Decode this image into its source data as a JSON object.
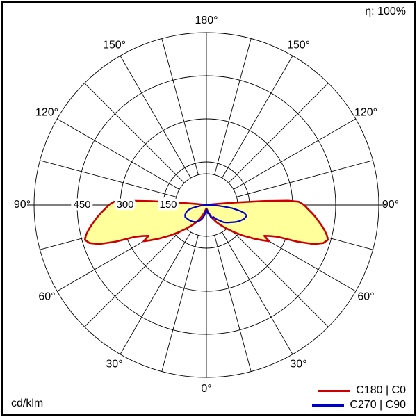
{
  "chart_data": {
    "type": "polar",
    "kind": "luminous-intensity-distribution",
    "efficiency": "η: 100%",
    "unit_label": "cd/klm",
    "angle_labels_deg": [
      0,
      30,
      60,
      90,
      120,
      150,
      180
    ],
    "angle_grid_step_deg": 15,
    "radial_ticks": [
      150,
      300,
      450
    ],
    "r_max": 600,
    "grid": true,
    "legend_position": "bottom-right",
    "series": [
      {
        "name": "C180 | C0",
        "color": "#cc0000",
        "fill": "#ffff9c",
        "gamma_deg": [
          0,
          5,
          10,
          15,
          20,
          25,
          30,
          35,
          40,
          45,
          50,
          55,
          58,
          60,
          62,
          64,
          66,
          68,
          70,
          72,
          74,
          76,
          78,
          80,
          82,
          84,
          86,
          88,
          90,
          92,
          93,
          94,
          95,
          96,
          98,
          100,
          105,
          110,
          120,
          150,
          180
        ],
        "values": [
          12,
          14,
          18,
          26,
          38,
          52,
          68,
          85,
          105,
          132,
          165,
          205,
          232,
          252,
          228,
          246,
          272,
          340,
          398,
          428,
          440,
          432,
          420,
          407,
          393,
          380,
          366,
          352,
          340,
          322,
          285,
          195,
          100,
          40,
          12,
          4,
          1,
          0,
          0,
          0,
          0
        ]
      },
      {
        "name": "C270 | C90",
        "color": "#0000cc",
        "fill": null,
        "gamma_deg": [
          0,
          5,
          10,
          15,
          20,
          25,
          30,
          35,
          40,
          45,
          50,
          55,
          60,
          65,
          70,
          75,
          78,
          80,
          83,
          85,
          88,
          90,
          95,
          100
        ],
        "right_values": [
          15,
          18,
          30,
          28,
          45,
          50,
          48,
          60,
          70,
          85,
          95,
          105,
          118,
          130,
          140,
          145,
          135,
          120,
          90,
          60,
          30,
          12,
          3,
          0
        ],
        "left_values": [
          15,
          20,
          35,
          45,
          55,
          62,
          68,
          72,
          75,
          78,
          80,
          82,
          85,
          82,
          75,
          65,
          50,
          35,
          20,
          12,
          8,
          5,
          1,
          0
        ]
      }
    ]
  }
}
